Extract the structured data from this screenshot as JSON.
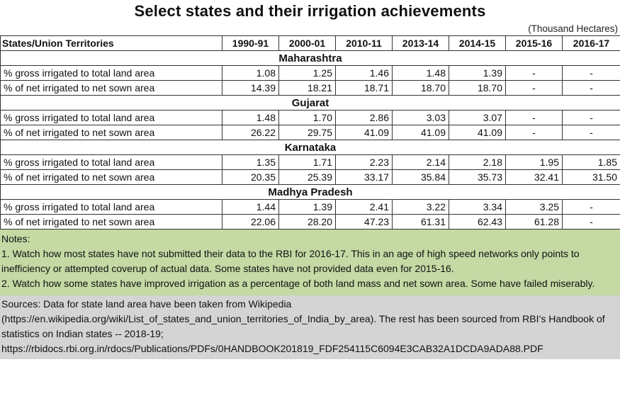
{
  "title": "Select states and their irrigation achievements",
  "unit": "(Thousand Hectares)",
  "columns": [
    "States/Union Territories",
    "1990-91",
    "2000-01",
    "2010-11",
    "2013-14",
    "2014-15",
    "2015-16",
    "2016-17"
  ],
  "states": [
    {
      "name": "Maharashtra",
      "rows": [
        {
          "label": "% gross irrigated to total land area",
          "values": [
            "1.08",
            "1.25",
            "1.46",
            "1.48",
            "1.39",
            "-",
            "-"
          ]
        },
        {
          "label": "% of net irrigated to net sown area",
          "values": [
            "14.39",
            "18.21",
            "18.71",
            "18.70",
            "18.70",
            "-",
            "-"
          ]
        }
      ]
    },
    {
      "name": "Gujarat",
      "rows": [
        {
          "label": "% gross irrigated to total land area",
          "values": [
            "1.48",
            "1.70",
            "2.86",
            "3.03",
            "3.07",
            "-",
            "-"
          ]
        },
        {
          "label": "% of net irrigated to net sown area",
          "values": [
            "26.22",
            "29.75",
            "41.09",
            "41.09",
            "41.09",
            "-",
            "-"
          ]
        }
      ]
    },
    {
      "name": "Karnataka",
      "rows": [
        {
          "label": "% gross irrigated to total land area",
          "values": [
            "1.35",
            "1.71",
            "2.23",
            "2.14",
            "2.18",
            "1.95",
            "1.85"
          ]
        },
        {
          "label": "% of net irrigated to net sown area",
          "values": [
            "20.35",
            "25.39",
            "33.17",
            "35.84",
            "35.73",
            "32.41",
            "31.50"
          ]
        }
      ]
    },
    {
      "name": "Madhya Pradesh",
      "rows": [
        {
          "label": "% gross irrigated to total land area",
          "values": [
            "1.44",
            "1.39",
            "2.41",
            "3.22",
            "3.34",
            "3.25",
            "-"
          ]
        },
        {
          "label": "% of net irrigated to net sown area",
          "values": [
            "22.06",
            "28.20",
            "47.23",
            "61.31",
            "62.43",
            "61.28",
            "-"
          ]
        }
      ]
    }
  ],
  "notes": [
    "Notes:",
    "1. Watch how most states have not submitted their data to the RBI for 2016-17.  This in an age of high speed networks only points to inefficiency or attempted coverup  of actual data. Some states have not provided data even for 2015-16.",
    "2. Watch how some states have improved irrigation as a percentage of both land mass and net sown area. Some have failed miserably."
  ],
  "sources": [
    "Sources: Data for state land area have been taken from Wikipedia (https://en.wikipedia.org/wiki/List_of_states_and_union_territories_of_India_by_area).  The rest has been sourced from RBI’s Handbook of statistics on Indian states -- 2018-19;",
    "https://rbidocs.rbi.org.in/rdocs/Publications/PDFs/0HANDBOOK201819_FDF254115C6094E3CAB32A1DCDA9ADA88.PDF"
  ],
  "colors": {
    "notes_bg": "#c4d9a4",
    "sources_bg": "#d4d4d4"
  }
}
